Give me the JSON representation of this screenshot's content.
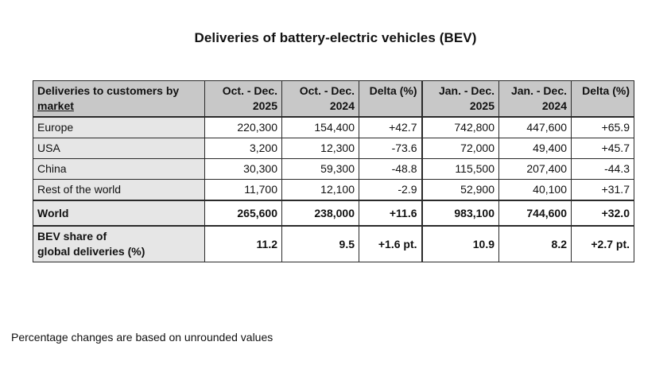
{
  "title": "Deliveries of battery-electric vehicles (BEV)",
  "table": {
    "header": {
      "label_line1": "Deliveries to customers by",
      "label_line2": "market",
      "columns": [
        {
          "line1": "Oct. - Dec.",
          "line2": "2025"
        },
        {
          "line1": "Oct. - Dec.",
          "line2": "2024"
        },
        {
          "line1": "Delta (%)",
          "line2": ""
        },
        {
          "line1": "Jan. - Dec.",
          "line2": "2025"
        },
        {
          "line1": "Jan. - Dec.",
          "line2": "2024"
        },
        {
          "line1": "Delta (%)",
          "line2": ""
        }
      ]
    },
    "rows": [
      {
        "label": "Europe",
        "values": [
          "220,300",
          "154,400",
          "+42.7",
          "742,800",
          "447,600",
          "+65.9"
        ]
      },
      {
        "label": "USA",
        "values": [
          "3,200",
          "12,300",
          "-73.6",
          "72,000",
          "49,400",
          "+45.7"
        ]
      },
      {
        "label": "China",
        "values": [
          "30,300",
          "59,300",
          "-48.8",
          "115,500",
          "207,400",
          "-44.3"
        ]
      },
      {
        "label": "Rest of the world",
        "values": [
          "11,700",
          "12,100",
          "-2.9",
          "52,900",
          "40,100",
          "+31.7"
        ]
      }
    ],
    "world": {
      "label": "World",
      "values": [
        "265,600",
        "238,000",
        "+11.6",
        "983,100",
        "744,600",
        "+32.0"
      ]
    },
    "share": {
      "label_line1": "BEV share of",
      "label_line2": "global deliveries (%)",
      "values": [
        "11.2",
        "9.5",
        "+1.6 pt.",
        "10.9",
        "8.2",
        "+2.7 pt."
      ]
    }
  },
  "footnote": "Percentage changes are based on unrounded values"
}
